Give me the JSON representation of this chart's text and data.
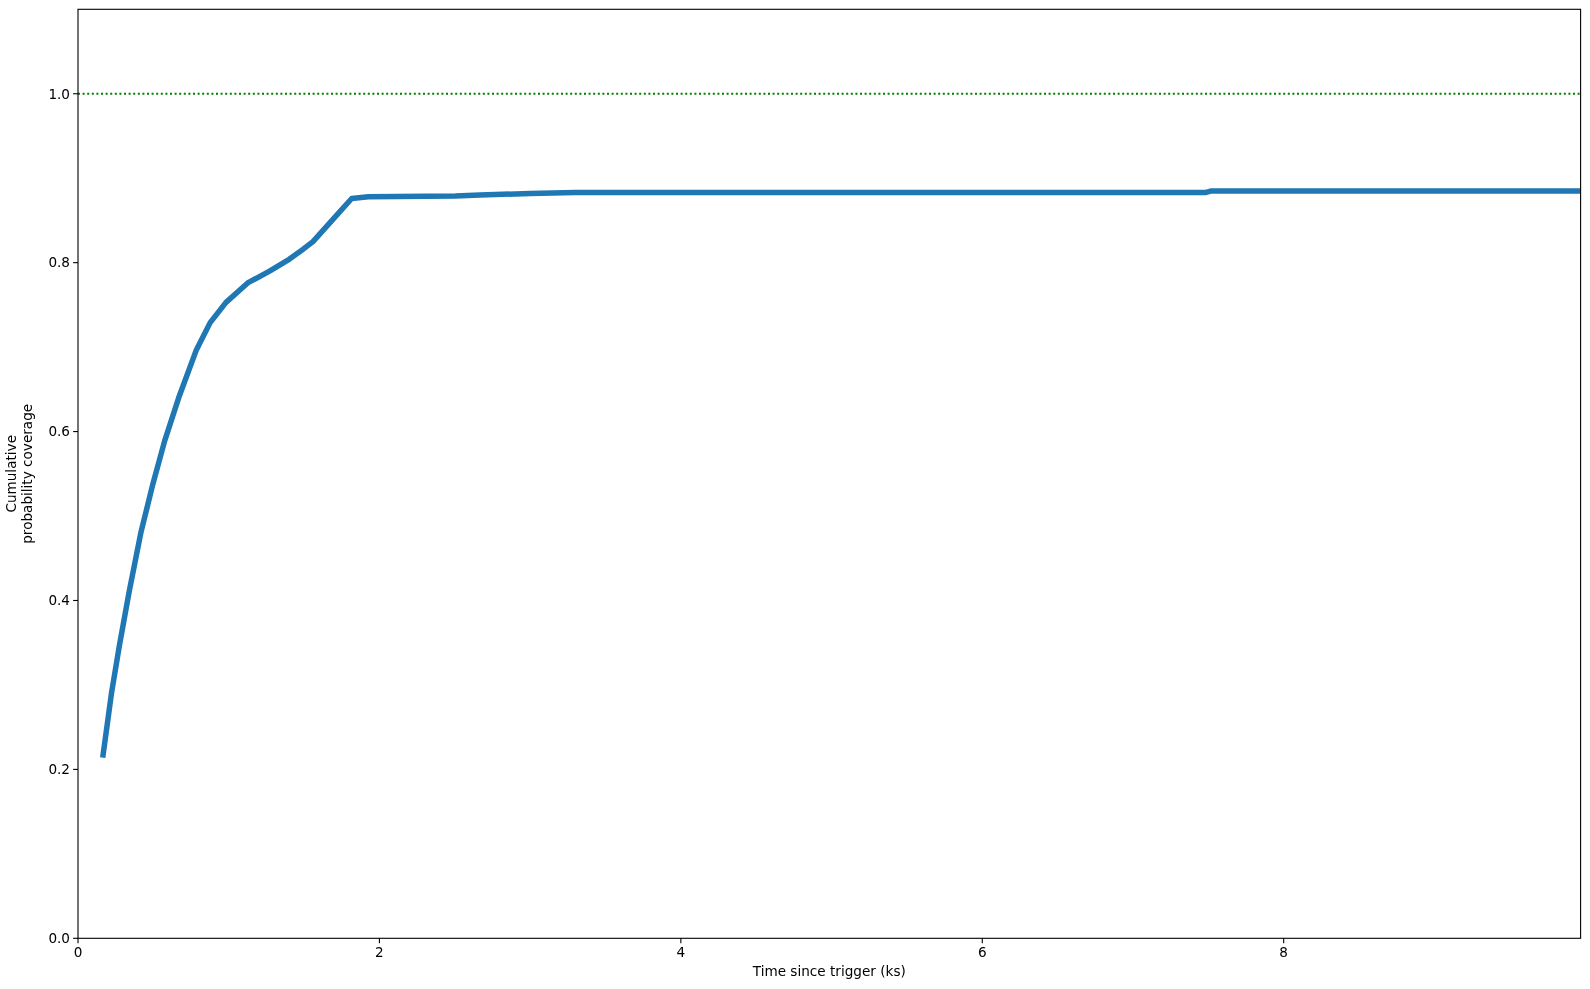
{
  "chart_data": {
    "type": "line",
    "xlabel": "Time since trigger (ks)",
    "ylabel": "Cumulative\nprobability coverage",
    "x": [
      0.164,
      0.222,
      0.274,
      0.34,
      0.418,
      0.497,
      0.575,
      0.668,
      0.786,
      0.877,
      0.982,
      1.126,
      1.271,
      1.401,
      1.494,
      1.559,
      1.69,
      1.816,
      1.926,
      2.504,
      2.666,
      3.0,
      3.3,
      7.48,
      7.52,
      9.97
    ],
    "series": [
      {
        "color": "#1f77b4",
        "values": [
          0.214,
          0.29,
          0.346,
          0.411,
          0.481,
          0.538,
          0.589,
          0.64,
          0.697,
          0.729,
          0.753,
          0.776,
          0.79,
          0.804,
          0.816,
          0.825,
          0.851,
          0.876,
          0.878,
          0.879,
          0.88,
          0.882,
          0.883,
          0.883,
          0.885,
          0.885
        ]
      }
    ],
    "xlim": [
      0,
      9.97
    ],
    "ylim": [
      0,
      1.1
    ],
    "xticks": [
      0,
      2,
      4,
      6,
      8
    ],
    "yticks": [
      {
        "value": 0,
        "label": "0.0"
      },
      {
        "value": 0.2,
        "label": "0.2"
      },
      {
        "value": 0.4,
        "label": "0.4"
      },
      {
        "value": 0.6,
        "label": "0.6"
      },
      {
        "value": 0.8,
        "label": "0.8"
      },
      {
        "value": 1,
        "label": "1.0"
      }
    ],
    "ref_lines": [
      {
        "axis": "y",
        "value": 1.0,
        "color": "#008000",
        "line_style": "dotted"
      }
    ]
  }
}
